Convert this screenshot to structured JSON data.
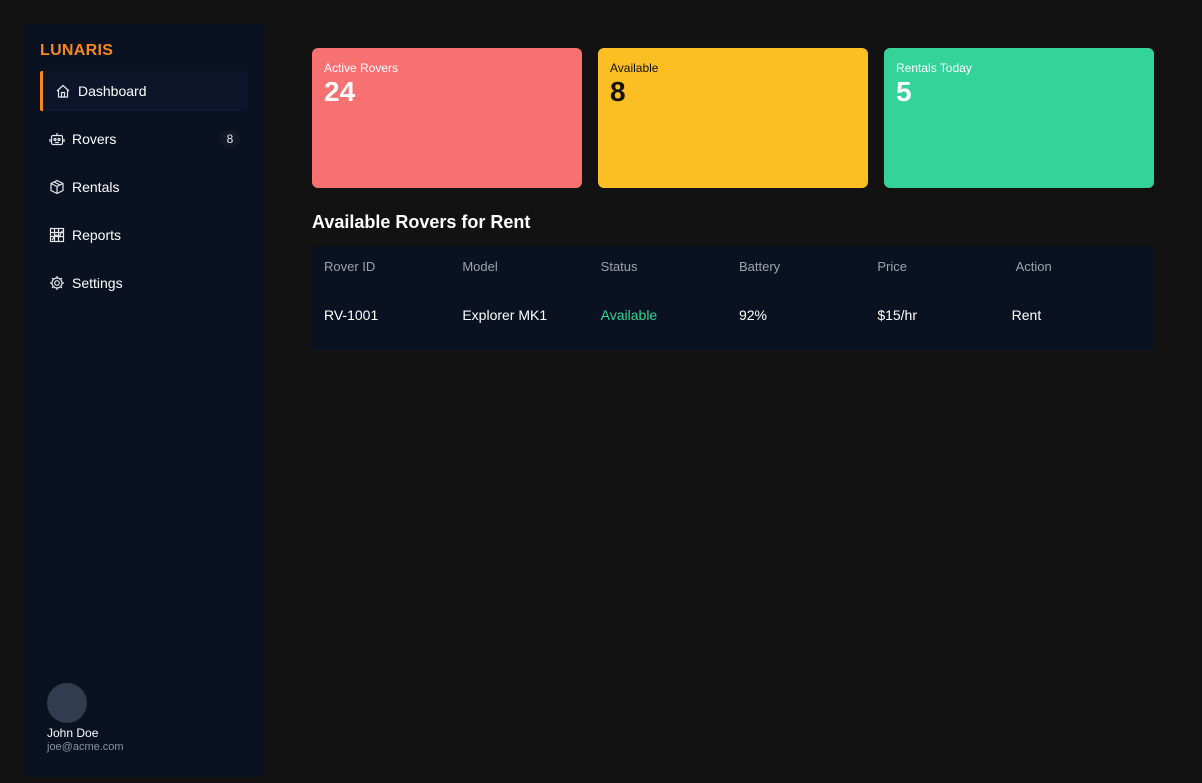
{
  "brand": "LUNARIS",
  "nav": [
    {
      "label": "Dashboard",
      "icon": "house-icon",
      "active": true
    },
    {
      "label": "Rovers",
      "icon": "robot-icon",
      "badge": "8"
    },
    {
      "label": "Rentals",
      "icon": "package-icon"
    },
    {
      "label": "Reports",
      "icon": "chart-icon"
    },
    {
      "label": "Settings",
      "icon": "gear-icon"
    }
  ],
  "user": {
    "name": "John Doe",
    "email": "joe@acme.com"
  },
  "stats": [
    {
      "label": "Active Rovers",
      "value": "24",
      "color": "#f87171"
    },
    {
      "label": "Available",
      "value": "8",
      "color": "#fbbf24"
    },
    {
      "label": "Rentals Today",
      "value": "5",
      "color": "#34d399"
    }
  ],
  "section_title": "Available Rovers for Rent",
  "table": {
    "columns": [
      "Rover ID",
      "Model",
      "Status",
      "Battery",
      "Price",
      "Action"
    ],
    "rows": [
      {
        "id": "RV-1001",
        "model": "Explorer MK1",
        "status": "Available",
        "battery": "92%",
        "price": "$15/hr",
        "action": "Rent"
      }
    ]
  },
  "colors": {
    "accent": "#f5891f",
    "status_available": "#34d399"
  }
}
